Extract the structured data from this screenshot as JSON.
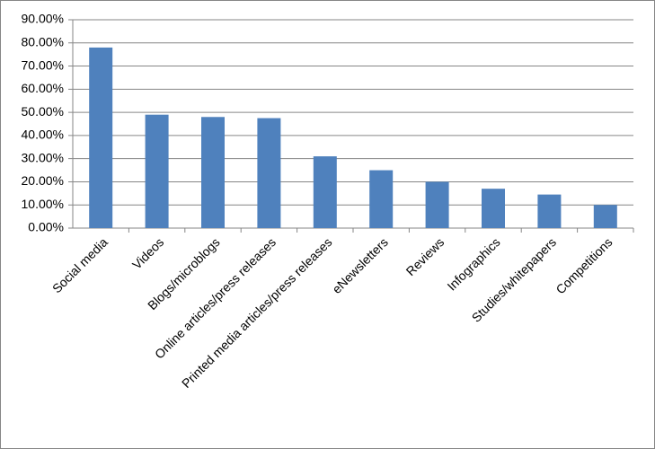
{
  "chart_data": {
    "type": "bar",
    "categories": [
      "Social media",
      "Videos",
      "Blogs/microblogs",
      "Online articles/press releases",
      "Printed media articles/press releases",
      "eNewsletters",
      "Reviews",
      "Infographics",
      "Studies/whitepapers",
      "Competitions"
    ],
    "values": [
      78,
      49,
      48,
      47.5,
      31,
      25,
      20,
      17,
      14.5,
      10
    ],
    "color": "#4f81bd",
    "ylim": [
      0,
      90
    ],
    "yticks": [
      {
        "value": 0,
        "label": "0.00%"
      },
      {
        "value": 10,
        "label": "10.00%"
      },
      {
        "value": 20,
        "label": "20.00%"
      },
      {
        "value": 30,
        "label": "30.00%"
      },
      {
        "value": 40,
        "label": "40.00%"
      },
      {
        "value": 50,
        "label": "50.00%"
      },
      {
        "value": 60,
        "label": "60.00%"
      },
      {
        "value": 70,
        "label": "70.00%"
      },
      {
        "value": 80,
        "label": "80.00%"
      },
      {
        "value": 90,
        "label": "90.00%"
      }
    ],
    "grid": true
  }
}
